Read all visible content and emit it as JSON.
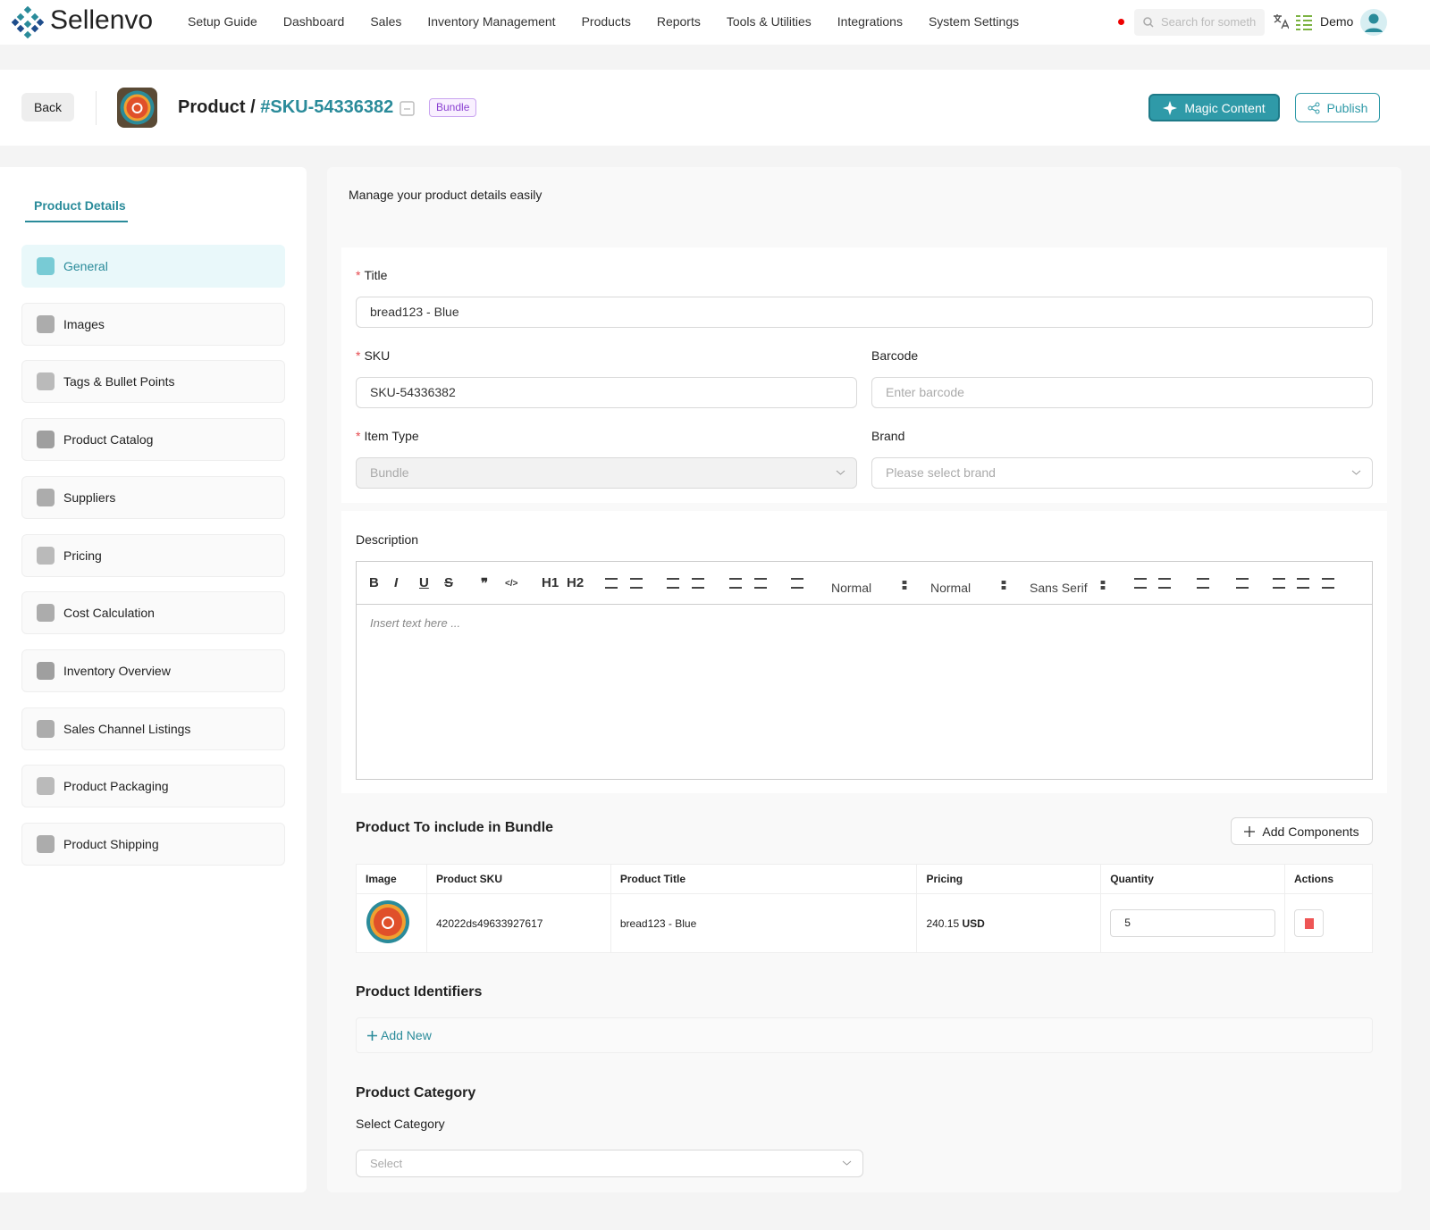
{
  "nav": {
    "brand": "Sellenvo",
    "links": [
      "Setup Guide",
      "Dashboard",
      "Sales",
      "Inventory Management",
      "Products",
      "Reports",
      "Tools & Utilities",
      "Integrations",
      "System Settings"
    ],
    "search_placeholder": "Search for someth",
    "user": "Demo"
  },
  "header": {
    "back": "Back",
    "title_prefix": "Product /",
    "sku": "#SKU-54336382",
    "badge": "Bundle",
    "magic": "Magic Content",
    "publish": "Publish"
  },
  "sidebar": {
    "tab": "Product Details",
    "items": [
      "General",
      "Images",
      "Tags & Bullet Points",
      "Product Catalog",
      "Suppliers",
      "Pricing",
      "Cost Calculation",
      "Inventory Overview",
      "Sales Channel Listings",
      "Product Packaging",
      "Product Shipping"
    ]
  },
  "main": {
    "intro": "Manage your product details easily",
    "required_mark": "*",
    "title": {
      "label": "Title",
      "value": "bread123 - Blue"
    },
    "sku": {
      "label": "SKU",
      "value": "SKU-54336382"
    },
    "barcode": {
      "label": "Barcode",
      "placeholder": "Enter barcode"
    },
    "item_type": {
      "label": "Item Type",
      "value": "Bundle"
    },
    "brand": {
      "label": "Brand",
      "placeholder": "Please select brand"
    },
    "description": {
      "label": "Description",
      "toolbar_glyphs": [
        "B",
        "I",
        "U",
        "S",
        "❞",
        "</>",
        "H1",
        "H2"
      ],
      "dropdowns": [
        "Normal",
        "Normal",
        "Sans Serif"
      ],
      "placeholder": "Insert text here ..."
    },
    "bundle": {
      "title": "Product To include in Bundle",
      "add": "Add Components",
      "columns": [
        "Image",
        "Product SKU",
        "Product Title",
        "Pricing",
        "Quantity",
        "Actions"
      ],
      "rows": [
        {
          "sku": "42022ds49633927617",
          "title": "bread123 - Blue",
          "price": "240.15",
          "currency": "USD",
          "quantity": "5"
        }
      ]
    },
    "identifiers": {
      "title": "Product Identifiers",
      "add": "Add New"
    },
    "category": {
      "title": "Product Category",
      "label": "Select Category",
      "placeholder": "Select"
    }
  }
}
